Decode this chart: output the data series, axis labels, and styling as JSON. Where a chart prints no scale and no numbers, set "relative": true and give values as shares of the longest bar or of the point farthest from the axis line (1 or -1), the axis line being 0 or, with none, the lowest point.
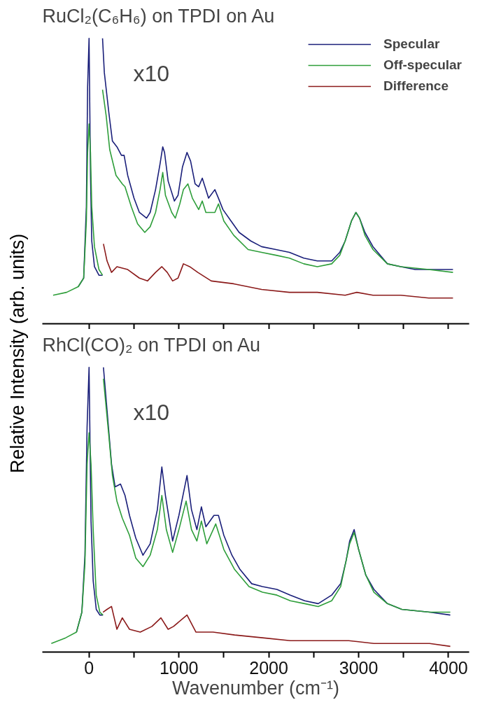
{
  "chart_data": [
    {
      "type": "line",
      "title": "RuCl₂(C₆H₆) on TPDI on Au",
      "ylabel": "Relative Intensity (arb. units)",
      "relative": true,
      "legend": "top right",
      "tick_labels": false,
      "annotations": [
        "x10"
      ],
      "xlim": [
        -520,
        4230
      ],
      "xticks": [
        0,
        {
          "value": 500,
          "label": null
        },
        1000,
        {
          "value": 1500,
          "label": null
        },
        2000,
        {
          "value": 2500,
          "label": null
        },
        3000,
        {
          "value": 3500,
          "label": null
        },
        4000
      ],
      "series": [
        {
          "color": "#1a1f7a",
          "x": [
            -120,
            -60,
            -30,
            -16,
            0,
            16,
            30,
            60,
            110,
            150
          ],
          "values": [
            0.13,
            0.16,
            0.41,
            0.83,
            1.0,
            0.52,
            0.29,
            0.2,
            0.17,
            0.17
          ]
        },
        {
          "color": "#2e9e3a",
          "x": [
            -400,
            -250,
            -120,
            -60,
            -30,
            -16,
            0,
            16,
            30,
            60,
            110,
            150
          ],
          "values": [
            0.1,
            0.11,
            0.13,
            0.16,
            0.36,
            0.6,
            0.7,
            0.6,
            0.41,
            0.27,
            0.19,
            0.17
          ]
        },
        {
          "name": "Specular",
          "color": "#1a1f7a",
          "x": [
            150,
            170,
            220,
            260,
            310,
            360,
            390,
            430,
            500,
            560,
            640,
            680,
            740,
            790,
            820,
            840,
            880,
            950,
            990,
            1040,
            1090,
            1130,
            1180,
            1220,
            1260,
            1290,
            1330,
            1400,
            1440,
            1490,
            1580,
            1670,
            1800,
            1920,
            2080,
            2230,
            2390,
            2540,
            2700,
            2790,
            2850,
            2920,
            2970,
            3010,
            3070,
            3160,
            3320,
            3470,
            3630,
            3780,
            4050
          ],
          "values": [
            1.0,
            0.88,
            0.74,
            0.64,
            0.62,
            0.59,
            0.59,
            0.52,
            0.44,
            0.39,
            0.37,
            0.39,
            0.47,
            0.56,
            0.62,
            0.6,
            0.5,
            0.43,
            0.45,
            0.55,
            0.6,
            0.57,
            0.49,
            0.48,
            0.51,
            0.48,
            0.44,
            0.47,
            0.44,
            0.4,
            0.36,
            0.32,
            0.29,
            0.27,
            0.26,
            0.25,
            0.23,
            0.22,
            0.22,
            0.25,
            0.29,
            0.36,
            0.39,
            0.37,
            0.32,
            0.27,
            0.21,
            0.2,
            0.19,
            0.19,
            0.19
          ]
        },
        {
          "name": "Off-specular",
          "color": "#2e9e3a",
          "x": [
            150,
            190,
            230,
            300,
            370,
            400,
            470,
            540,
            620,
            680,
            740,
            790,
            820,
            850,
            920,
            960,
            1010,
            1050,
            1100,
            1150,
            1220,
            1260,
            1300,
            1400,
            1440,
            1500,
            1610,
            1770,
            1920,
            2080,
            2230,
            2390,
            2540,
            2700,
            2790,
            2850,
            2920,
            2970,
            3010,
            3070,
            3160,
            3320,
            3470,
            3780,
            4050
          ],
          "values": [
            0.82,
            0.73,
            0.61,
            0.52,
            0.49,
            0.48,
            0.41,
            0.35,
            0.32,
            0.34,
            0.39,
            0.47,
            0.53,
            0.45,
            0.39,
            0.37,
            0.42,
            0.47,
            0.49,
            0.44,
            0.4,
            0.43,
            0.39,
            0.39,
            0.42,
            0.36,
            0.31,
            0.26,
            0.25,
            0.24,
            0.23,
            0.21,
            0.2,
            0.21,
            0.24,
            0.29,
            0.36,
            0.39,
            0.37,
            0.31,
            0.26,
            0.21,
            0.2,
            0.19,
            0.18
          ]
        },
        {
          "name": "Difference",
          "color": "#8b1a1a",
          "x": [
            160,
            200,
            250,
            310,
            430,
            560,
            650,
            740,
            810,
            870,
            930,
            990,
            1050,
            1120,
            1210,
            1360,
            1610,
            1920,
            2230,
            2540,
            2850,
            2980,
            3160,
            3470,
            3780,
            4050
          ],
          "values": [
            0.28,
            0.22,
            0.18,
            0.2,
            0.19,
            0.16,
            0.15,
            0.18,
            0.2,
            0.18,
            0.15,
            0.16,
            0.21,
            0.2,
            0.18,
            0.15,
            0.14,
            0.12,
            0.11,
            0.11,
            0.1,
            0.11,
            0.1,
            0.1,
            0.09,
            0.09
          ]
        }
      ]
    },
    {
      "type": "line",
      "title": "RhCl(CO)₂ on TPDI on Au",
      "xlabel": "Wavenumber (cm⁻¹)",
      "relative": true,
      "tick_labels": "x",
      "annotations": [
        "x10"
      ],
      "xlim": [
        -520,
        4230
      ],
      "xticks": [
        0,
        {
          "value": 500,
          "label": null
        },
        1000,
        {
          "value": 1500,
          "label": null
        },
        2000,
        {
          "value": 2500,
          "label": null
        },
        3000,
        {
          "value": 3500,
          "label": null
        },
        4000
      ],
      "series": [
        {
          "color": "#1a1f7a",
          "x": [
            -140,
            -80,
            -46,
            -22,
            0,
            22,
            46,
            80,
            120,
            155
          ],
          "values": [
            0.07,
            0.14,
            0.34,
            0.79,
            1.0,
            0.46,
            0.25,
            0.15,
            0.13,
            0.13
          ]
        },
        {
          "color": "#2e9e3a",
          "x": [
            -420,
            -260,
            -140,
            -80,
            -46,
            -22,
            0,
            22,
            46,
            80,
            120,
            155
          ],
          "values": [
            0.03,
            0.05,
            0.07,
            0.14,
            0.31,
            0.66,
            0.77,
            0.66,
            0.43,
            0.2,
            0.14,
            0.13
          ]
        },
        {
          "color": "#1a1f7a",
          "x": [
            160,
            200,
            250,
            290,
            350,
            400,
            450,
            520,
            600,
            680,
            760,
            810,
            850,
            930,
            1000,
            1090,
            1140,
            1200,
            1250,
            1300,
            1390,
            1440,
            1500,
            1590,
            1680,
            1810,
            1930,
            2090,
            2240,
            2400,
            2550,
            2700,
            2800,
            2860,
            2900,
            2950,
            3000,
            3080,
            3170,
            3320,
            3480,
            3790,
            4020
          ],
          "values": [
            1.0,
            0.85,
            0.66,
            0.58,
            0.59,
            0.55,
            0.48,
            0.4,
            0.34,
            0.38,
            0.5,
            0.65,
            0.55,
            0.39,
            0.48,
            0.62,
            0.5,
            0.43,
            0.51,
            0.44,
            0.48,
            0.48,
            0.41,
            0.34,
            0.29,
            0.24,
            0.23,
            0.22,
            0.2,
            0.18,
            0.17,
            0.2,
            0.24,
            0.32,
            0.39,
            0.43,
            0.36,
            0.27,
            0.22,
            0.17,
            0.15,
            0.14,
            0.13
          ]
        },
        {
          "color": "#2e9e3a",
          "x": [
            160,
            220,
            260,
            310,
            370,
            450,
            520,
            600,
            680,
            760,
            810,
            860,
            930,
            1000,
            1080,
            1140,
            1200,
            1250,
            1310,
            1410,
            1500,
            1620,
            1780,
            1930,
            2090,
            2240,
            2400,
            2550,
            2700,
            2800,
            2860,
            2900,
            2950,
            3000,
            3080,
            3170,
            3320,
            3480,
            3790,
            4020
          ],
          "values": [
            0.96,
            0.76,
            0.62,
            0.53,
            0.47,
            0.41,
            0.33,
            0.3,
            0.34,
            0.43,
            0.55,
            0.43,
            0.35,
            0.43,
            0.53,
            0.43,
            0.39,
            0.46,
            0.38,
            0.45,
            0.36,
            0.29,
            0.23,
            0.21,
            0.2,
            0.18,
            0.17,
            0.16,
            0.18,
            0.23,
            0.32,
            0.38,
            0.42,
            0.36,
            0.27,
            0.21,
            0.17,
            0.15,
            0.14,
            0.14
          ]
        },
        {
          "color": "#8b1a1a",
          "x": [
            155,
            200,
            250,
            310,
            370,
            450,
            570,
            700,
            800,
            880,
            940,
            1090,
            1190,
            1380,
            1620,
            1930,
            2240,
            2550,
            2890,
            3170,
            3480,
            3790,
            4020
          ],
          "values": [
            0.14,
            0.15,
            0.16,
            0.08,
            0.12,
            0.08,
            0.07,
            0.09,
            0.12,
            0.08,
            0.09,
            0.13,
            0.07,
            0.07,
            0.06,
            0.05,
            0.04,
            0.04,
            0.04,
            0.03,
            0.03,
            0.03,
            0.02
          ]
        }
      ]
    }
  ]
}
